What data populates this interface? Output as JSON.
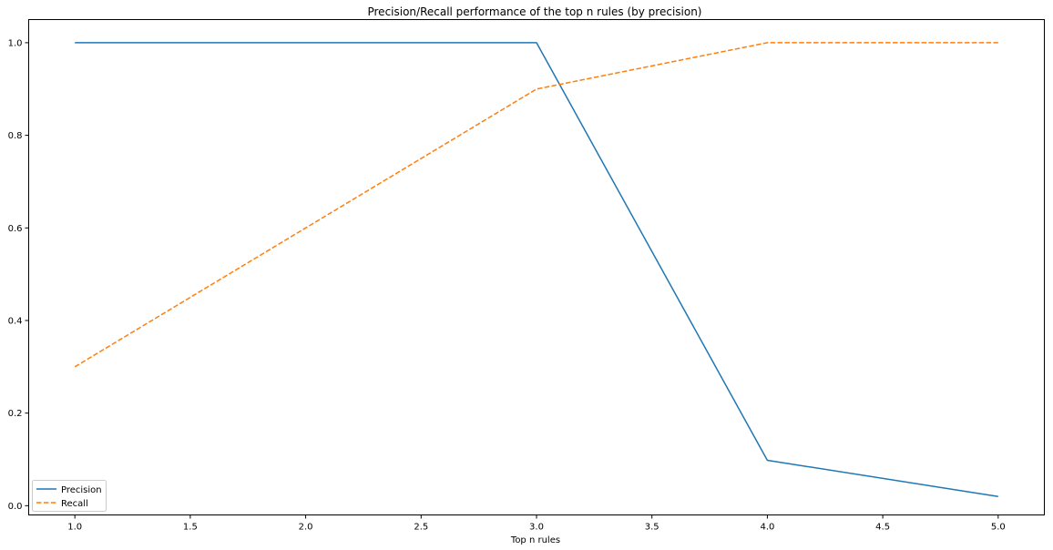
{
  "chart_data": {
    "type": "line",
    "title": "Precision/Recall performance of the top n rules (by precision)",
    "xlabel": "Top n rules",
    "ylabel": "",
    "x": [
      1,
      2,
      3,
      4,
      5
    ],
    "xlim": [
      0.8,
      5.2
    ],
    "ylim": [
      -0.02,
      1.05
    ],
    "xticks": [
      1.0,
      1.5,
      2.0,
      2.5,
      3.0,
      3.5,
      4.0,
      4.5,
      5.0
    ],
    "xtick_labels": [
      "1.0",
      "1.5",
      "2.0",
      "2.5",
      "3.0",
      "3.5",
      "4.0",
      "4.5",
      "5.0"
    ],
    "yticks": [
      0.0,
      0.2,
      0.4,
      0.6,
      0.8,
      1.0
    ],
    "ytick_labels": [
      "0.0",
      "0.2",
      "0.4",
      "0.6",
      "0.8",
      "1.0"
    ],
    "grid": false,
    "legend_position": "lower-left",
    "series": [
      {
        "name": "Precision",
        "values": [
          1.0,
          1.0,
          1.0,
          0.098,
          0.02
        ],
        "color": "#1f77b4",
        "line_style": "solid"
      },
      {
        "name": "Recall",
        "values": [
          0.3,
          0.6,
          0.9,
          1.0,
          1.0
        ],
        "color": "#ff7f0e",
        "line_style": "dashed"
      }
    ]
  }
}
